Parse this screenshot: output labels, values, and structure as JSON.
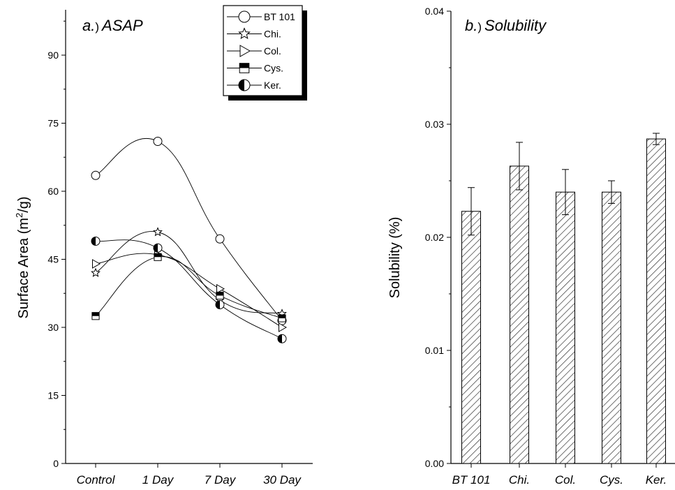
{
  "chart_data": [
    {
      "type": "line",
      "panel_prefix": "a.",
      "panel_paren": ")",
      "title": "ASAP",
      "ylabel": "Surface Area (m",
      "ylabel_sup": "2",
      "ylabel_end": "/g)",
      "categories": [
        "Control",
        "1 Day",
        "7 Day",
        "30 Day"
      ],
      "ylim": [
        0,
        100
      ],
      "yticks": [
        "0",
        "15",
        "30",
        "45",
        "60",
        "75",
        "90"
      ],
      "legend_position": "top-right",
      "series": [
        {
          "name": "BT 101",
          "marker": "circle-open",
          "values": [
            63.5,
            71.0,
            49.5,
            31.5
          ]
        },
        {
          "name": "Chi.",
          "marker": "star",
          "values": [
            42.0,
            51.0,
            36.0,
            33.0
          ]
        },
        {
          "name": "Col.",
          "marker": "triangle-right",
          "values": [
            44.0,
            46.0,
            38.5,
            30.0
          ]
        },
        {
          "name": "Cys.",
          "marker": "square-half",
          "values": [
            32.5,
            45.5,
            37.0,
            32.0
          ]
        },
        {
          "name": "Ker.",
          "marker": "circle-half",
          "values": [
            49.0,
            47.5,
            35.0,
            27.5
          ]
        }
      ]
    },
    {
      "type": "bar",
      "panel_prefix": "b.",
      "panel_paren": ")",
      "title": "Solubility",
      "ylabel": "Solubility (%)",
      "categories": [
        "BT 101",
        "Chi.",
        "Col.",
        "Cys.",
        "Ker."
      ],
      "values": [
        0.0223,
        0.0263,
        0.024,
        0.024,
        0.0287
      ],
      "errors": [
        0.0021,
        0.0021,
        0.002,
        0.001,
        0.0005
      ],
      "ylim": [
        0,
        0.04
      ],
      "yticks": [
        "0.00",
        "0.01",
        "0.02",
        "0.03",
        "0.04"
      ],
      "pattern": "diagonal-hatch"
    }
  ]
}
